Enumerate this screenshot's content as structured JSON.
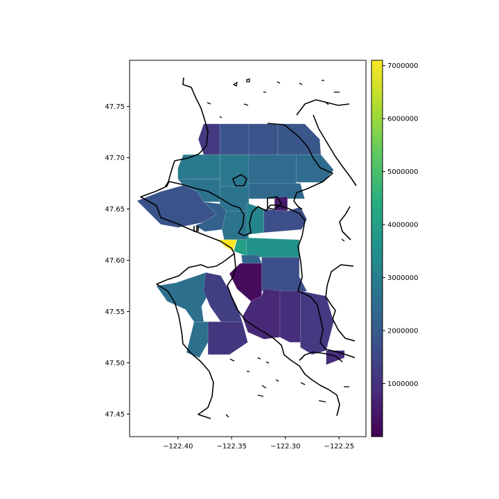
{
  "chart_data": {
    "type": "choropleth",
    "title": "",
    "xlabel": "",
    "ylabel": "",
    "xlim": [
      -122.445,
      -122.225
    ],
    "ylim": [
      47.428,
      47.795
    ],
    "x_ticks": [
      -122.4,
      -122.35,
      -122.3,
      -122.25
    ],
    "x_tick_labels": [
      "−122.40",
      "−122.35",
      "−122.30",
      "−122.25"
    ],
    "y_ticks": [
      47.45,
      47.5,
      47.55,
      47.6,
      47.65,
      47.7,
      47.75
    ],
    "y_tick_labels": [
      "47.45",
      "47.50",
      "47.55",
      "47.60",
      "47.65",
      "47.70",
      "47.75"
    ],
    "colorbar": {
      "colormap": "viridis",
      "range": [
        0,
        7100000
      ],
      "ticks": [
        1000000,
        2000000,
        3000000,
        4000000,
        5000000,
        6000000,
        7000000
      ],
      "tick_labels": [
        "1000000",
        "2000000",
        "3000000",
        "4000000",
        "5000000",
        "6000000",
        "7000000"
      ]
    },
    "regions": [
      {
        "value": 1200000,
        "poly": [
          [
            -122.376,
            47.733
          ],
          [
            -122.361,
            47.733
          ],
          [
            -122.361,
            47.703
          ],
          [
            -122.376,
            47.703
          ],
          [
            -122.381,
            47.718
          ]
        ]
      },
      {
        "value": 1800000,
        "poly": [
          [
            -122.361,
            47.733
          ],
          [
            -122.334,
            47.733
          ],
          [
            -122.334,
            47.703
          ],
          [
            -122.361,
            47.703
          ]
        ]
      },
      {
        "value": 1800000,
        "poly": [
          [
            -122.334,
            47.733
          ],
          [
            -122.307,
            47.733
          ],
          [
            -122.307,
            47.703
          ],
          [
            -122.334,
            47.703
          ]
        ]
      },
      {
        "value": 1900000,
        "poly": [
          [
            -122.307,
            47.733
          ],
          [
            -122.282,
            47.733
          ],
          [
            -122.268,
            47.718
          ],
          [
            -122.267,
            47.703
          ],
          [
            -122.307,
            47.703
          ]
        ]
      },
      {
        "value": 2900000,
        "poly": [
          [
            -122.395,
            47.703
          ],
          [
            -122.361,
            47.703
          ],
          [
            -122.361,
            47.679
          ],
          [
            -122.4,
            47.679
          ],
          [
            -122.4,
            47.69
          ]
        ]
      },
      {
        "value": 2800000,
        "poly": [
          [
            -122.361,
            47.703
          ],
          [
            -122.334,
            47.703
          ],
          [
            -122.334,
            47.672
          ],
          [
            -122.361,
            47.672
          ]
        ]
      },
      {
        "value": 2500000,
        "poly": [
          [
            -122.334,
            47.703
          ],
          [
            -122.29,
            47.703
          ],
          [
            -122.29,
            47.675
          ],
          [
            -122.334,
            47.675
          ]
        ]
      },
      {
        "value": 2500000,
        "poly": [
          [
            -122.29,
            47.703
          ],
          [
            -122.267,
            47.703
          ],
          [
            -122.255,
            47.688
          ],
          [
            -122.265,
            47.676
          ],
          [
            -122.29,
            47.676
          ]
        ]
      },
      {
        "value": 2400000,
        "poly": [
          [
            -122.334,
            47.675
          ],
          [
            -122.286,
            47.675
          ],
          [
            -122.282,
            47.66
          ],
          [
            -122.334,
            47.66
          ]
        ]
      },
      {
        "value": 2700000,
        "poly": [
          [
            -122.4,
            47.679
          ],
          [
            -122.361,
            47.679
          ],
          [
            -122.361,
            47.657
          ],
          [
            -122.376,
            47.657
          ],
          [
            -122.382,
            47.667
          ],
          [
            -122.395,
            47.673
          ]
        ]
      },
      {
        "value": 2700000,
        "poly": [
          [
            -122.361,
            47.672
          ],
          [
            -122.334,
            47.672
          ],
          [
            -122.334,
            47.648
          ],
          [
            -122.355,
            47.648
          ],
          [
            -122.361,
            47.655
          ]
        ]
      },
      {
        "value": 1800000,
        "poly": [
          [
            -122.416,
            47.667
          ],
          [
            -122.395,
            47.673
          ],
          [
            -122.382,
            47.667
          ],
          [
            -122.376,
            47.657
          ],
          [
            -122.364,
            47.645
          ],
          [
            -122.376,
            47.637
          ],
          [
            -122.4,
            47.632
          ],
          [
            -122.416,
            47.635
          ],
          [
            -122.438,
            47.658
          ]
        ]
      },
      {
        "value": 2200000,
        "poly": [
          [
            -122.376,
            47.657
          ],
          [
            -122.361,
            47.655
          ],
          [
            -122.355,
            47.648
          ],
          [
            -122.359,
            47.63
          ],
          [
            -122.375,
            47.628
          ],
          [
            -122.384,
            47.634
          ],
          [
            -122.376,
            47.637
          ],
          [
            -122.364,
            47.645
          ]
        ]
      },
      {
        "value": 2700000,
        "poly": [
          [
            -122.355,
            47.648
          ],
          [
            -122.336,
            47.648
          ],
          [
            -122.334,
            47.62
          ],
          [
            -122.357,
            47.62
          ],
          [
            -122.359,
            47.63
          ]
        ]
      },
      {
        "value": 3200000,
        "poly": [
          [
            -122.336,
            47.656
          ],
          [
            -122.32,
            47.65
          ],
          [
            -122.32,
            47.627
          ],
          [
            -122.336,
            47.625
          ],
          [
            -122.336,
            47.648
          ]
        ]
      },
      {
        "value": 500000,
        "poly": [
          [
            -122.31,
            47.661
          ],
          [
            -122.298,
            47.662
          ],
          [
            -122.298,
            47.648
          ],
          [
            -122.31,
            47.649
          ]
        ]
      },
      {
        "value": 1700000,
        "poly": [
          [
            -122.32,
            47.65
          ],
          [
            -122.31,
            47.649
          ],
          [
            -122.298,
            47.648
          ],
          [
            -122.286,
            47.652
          ],
          [
            -122.28,
            47.64
          ],
          [
            -122.285,
            47.63
          ],
          [
            -122.32,
            47.627
          ]
        ]
      },
      {
        "value": 7100000,
        "poly": [
          [
            -122.362,
            47.62
          ],
          [
            -122.345,
            47.62
          ],
          [
            -122.349,
            47.609
          ],
          [
            -122.356,
            47.613
          ]
        ]
      },
      {
        "value": 4000000,
        "poly": [
          [
            -122.345,
            47.62
          ],
          [
            -122.336,
            47.62
          ],
          [
            -122.336,
            47.604
          ],
          [
            -122.348,
            47.609
          ]
        ]
      },
      {
        "value": 3600000,
        "poly": [
          [
            -122.336,
            47.622
          ],
          [
            -122.287,
            47.62
          ],
          [
            -122.287,
            47.603
          ],
          [
            -122.325,
            47.603
          ],
          [
            -122.336,
            47.604
          ]
        ]
      },
      {
        "value": 2300000,
        "poly": [
          [
            -122.341,
            47.605
          ],
          [
            -122.325,
            47.605
          ],
          [
            -122.322,
            47.597
          ],
          [
            -122.34,
            47.597
          ]
        ]
      },
      {
        "value": 200000,
        "poly": [
          [
            -122.342,
            47.597
          ],
          [
            -122.322,
            47.597
          ],
          [
            -122.322,
            47.565
          ],
          [
            -122.332,
            47.56
          ],
          [
            -122.345,
            47.572
          ],
          [
            -122.352,
            47.587
          ]
        ]
      },
      {
        "value": 1700000,
        "poly": [
          [
            -122.322,
            47.603
          ],
          [
            -122.287,
            47.603
          ],
          [
            -122.287,
            47.584
          ],
          [
            -122.28,
            47.57
          ],
          [
            -122.298,
            47.566
          ],
          [
            -122.322,
            47.57
          ]
        ]
      },
      {
        "value": 2600000,
        "poly": [
          [
            -122.402,
            47.578
          ],
          [
            -122.374,
            47.588
          ],
          [
            -122.36,
            47.585
          ],
          [
            -122.355,
            47.57
          ],
          [
            -122.37,
            47.57
          ],
          [
            -122.378,
            47.555
          ],
          [
            -122.376,
            47.54
          ],
          [
            -122.385,
            47.54
          ],
          [
            -122.393,
            47.552
          ],
          [
            -122.41,
            47.56
          ],
          [
            -122.42,
            47.575
          ]
        ]
      },
      {
        "value": 1300000,
        "poly": [
          [
            -122.374,
            47.588
          ],
          [
            -122.36,
            47.585
          ],
          [
            -122.352,
            47.57
          ],
          [
            -122.345,
            47.555
          ],
          [
            -122.34,
            47.54
          ],
          [
            -122.36,
            47.54
          ],
          [
            -122.37,
            47.555
          ],
          [
            -122.376,
            47.57
          ]
        ]
      },
      {
        "value": 2600000,
        "poly": [
          [
            -122.385,
            47.54
          ],
          [
            -122.372,
            47.54
          ],
          [
            -122.372,
            47.52
          ],
          [
            -122.38,
            47.505
          ],
          [
            -122.392,
            47.51
          ]
        ]
      },
      {
        "value": 1100000,
        "poly": [
          [
            -122.372,
            47.54
          ],
          [
            -122.34,
            47.54
          ],
          [
            -122.335,
            47.52
          ],
          [
            -122.352,
            47.508
          ],
          [
            -122.372,
            47.508
          ]
        ]
      },
      {
        "value": 800000,
        "poly": [
          [
            -122.332,
            47.56
          ],
          [
            -122.322,
            47.565
          ],
          [
            -122.32,
            47.572
          ],
          [
            -122.305,
            47.57
          ],
          [
            -122.305,
            47.525
          ],
          [
            -122.32,
            47.523
          ],
          [
            -122.335,
            47.53
          ],
          [
            -122.34,
            47.545
          ]
        ]
      },
      {
        "value": 900000,
        "poly": [
          [
            -122.305,
            47.57
          ],
          [
            -122.286,
            47.57
          ],
          [
            -122.286,
            47.52
          ],
          [
            -122.296,
            47.52
          ],
          [
            -122.305,
            47.525
          ]
        ]
      },
      {
        "value": 1200000,
        "poly": [
          [
            -122.286,
            47.57
          ],
          [
            -122.262,
            47.565
          ],
          [
            -122.255,
            47.54
          ],
          [
            -122.262,
            47.512
          ],
          [
            -122.275,
            47.508
          ],
          [
            -122.286,
            47.515
          ]
        ]
      },
      {
        "value": 900000,
        "poly": [
          [
            -122.262,
            47.512
          ],
          [
            -122.245,
            47.512
          ],
          [
            -122.245,
            47.505
          ],
          [
            -122.262,
            47.498
          ]
        ]
      }
    ]
  }
}
